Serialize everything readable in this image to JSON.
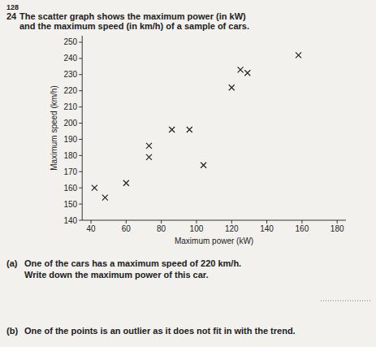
{
  "page_number": "128",
  "question_number": "24",
  "question_lines": [
    "The scatter graph shows the maximum power (in kW)",
    "and the maximum speed (in km/h) of a sample of cars."
  ],
  "parts": [
    {
      "label": "(a)",
      "lines": [
        "One of the cars has a maximum speed of 220 km/h.",
        "Write down the maximum power of this car."
      ]
    },
    {
      "label": "(b)",
      "lines": [
        "One of the points is an outlier as it does not fit in with the trend."
      ]
    }
  ],
  "chart_data": {
    "type": "scatter",
    "x_label": "Maximum power (kW)",
    "y_label": "Maximum speed (km/h)",
    "x": [
      42,
      48,
      60,
      73,
      73,
      86,
      96,
      104,
      120,
      125,
      129,
      158
    ],
    "values": [
      160,
      154,
      163,
      186,
      179,
      196,
      196,
      174,
      222,
      233,
      231,
      242
    ],
    "marker": "x",
    "color": "#222222",
    "xlim": [
      35,
      185
    ],
    "ylim": [
      140,
      254
    ],
    "xticks": [
      40,
      60,
      80,
      100,
      120,
      140,
      160,
      180
    ],
    "yticks": [
      140,
      150,
      160,
      170,
      180,
      190,
      200,
      210,
      220,
      230,
      240,
      250
    ],
    "grid": false
  }
}
